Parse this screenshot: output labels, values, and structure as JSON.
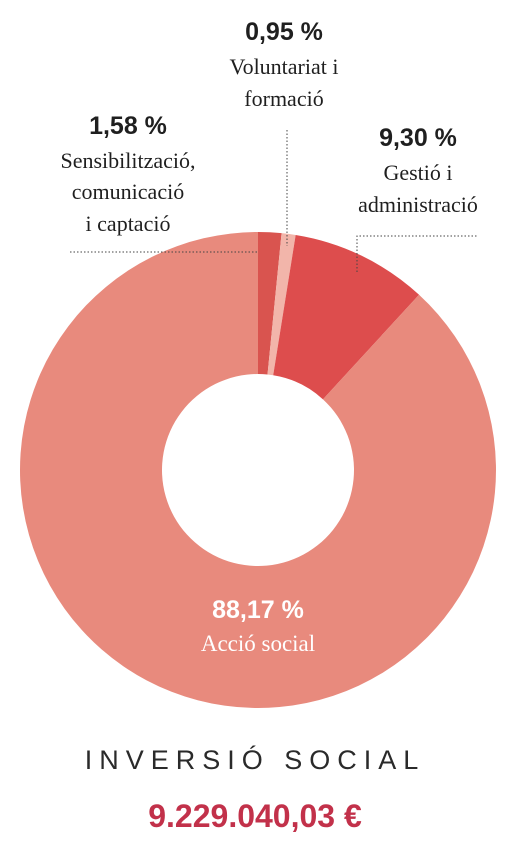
{
  "chart_data": {
    "type": "pie",
    "donut": true,
    "slices": [
      {
        "label_lines": [
          "Sensibilització,",
          "comunicació",
          "i captació"
        ],
        "value_label": "1,58 %",
        "value": 1.58,
        "color": "#d9544f"
      },
      {
        "label_lines": [
          "Voluntariat i",
          "formació"
        ],
        "value_label": "0,95 %",
        "value": 0.95,
        "color": "#f2b5aa"
      },
      {
        "label_lines": [
          "Gestió i",
          "administració"
        ],
        "value_label": "9,30 %",
        "value": 9.3,
        "color": "#dd4d4d"
      },
      {
        "label_lines": [
          "Acció social"
        ],
        "value_label": "88,17 %",
        "value": 88.17,
        "color": "#e88a7d"
      }
    ]
  },
  "footer": {
    "title": "INVERSIÓ SOCIAL",
    "total": "9.229.040,03 €"
  }
}
